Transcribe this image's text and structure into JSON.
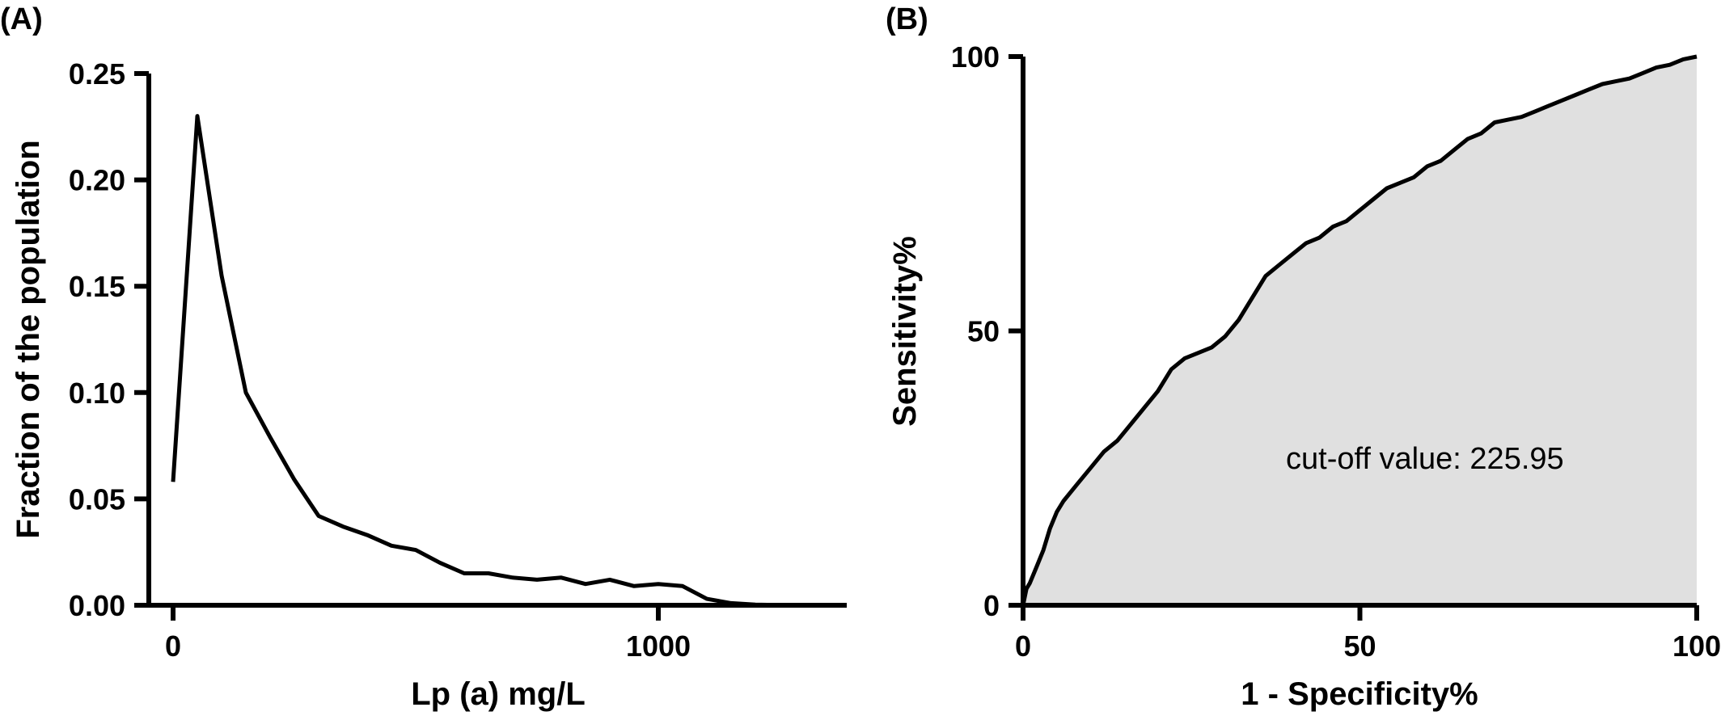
{
  "chart_data": [
    {
      "panel_label": "(A)",
      "type": "line",
      "xlabel": "Lp (a) mg/L",
      "ylabel": "Fraction of the population",
      "xlim": [
        -50,
        1400
      ],
      "ylim": [
        0,
        0.25
      ],
      "xticks": [
        "0",
        "1000"
      ],
      "xtick_values": [
        0,
        1000
      ],
      "yticks": [
        "0.00",
        "0.05",
        "0.10",
        "0.15",
        "0.20",
        "0.25"
      ],
      "ytick_values": [
        0,
        0.05,
        0.1,
        0.15,
        0.2,
        0.25
      ],
      "series": [
        {
          "x": [
            0,
            50,
            100,
            150,
            200,
            250,
            300,
            350,
            400,
            450,
            500,
            550,
            600,
            650,
            700,
            750,
            800,
            850,
            900,
            950,
            1000,
            1050,
            1100,
            1150,
            1200,
            1250,
            1300
          ],
          "values": [
            0.058,
            0.23,
            0.155,
            0.1,
            0.079,
            0.059,
            0.042,
            0.037,
            0.033,
            0.028,
            0.026,
            0.02,
            0.015,
            0.015,
            0.013,
            0.012,
            0.013,
            0.01,
            0.012,
            0.009,
            0.01,
            0.009,
            0.003,
            0.001,
            0.0003,
            0.0001,
            0
          ]
        }
      ]
    },
    {
      "panel_label": "(B)",
      "type": "area",
      "xlabel": "1 - Specificity%",
      "ylabel": "Sensitivity%",
      "xlim": [
        0,
        100
      ],
      "ylim": [
        0,
        100
      ],
      "xticks": [
        "0",
        "50",
        "100"
      ],
      "xtick_values": [
        0,
        50,
        100
      ],
      "yticks": [
        "0",
        "50",
        "100"
      ],
      "ytick_values": [
        0,
        50,
        100
      ],
      "annotation": "cut-off value: 225.95",
      "series": [
        {
          "x": [
            0,
            0.5,
            1,
            2,
            3,
            4,
            5,
            6,
            8,
            10,
            12,
            14,
            16,
            18,
            20,
            22,
            24,
            26,
            28,
            30,
            32,
            34,
            36,
            38,
            40,
            42,
            44,
            46,
            48,
            50,
            52,
            54,
            56,
            58,
            60,
            62,
            64,
            66,
            68,
            70,
            72,
            74,
            76,
            78,
            80,
            82,
            84,
            86,
            88,
            90,
            92,
            94,
            96,
            98,
            100
          ],
          "values": [
            0,
            3,
            4,
            7,
            10,
            14,
            17,
            19,
            22,
            25,
            28,
            30,
            33,
            36,
            39,
            43,
            45,
            46,
            47,
            49,
            52,
            56,
            60,
            62,
            64,
            66,
            67,
            69,
            70,
            72,
            74,
            76,
            77,
            78,
            80,
            81,
            83,
            85,
            86,
            88,
            88.5,
            89,
            90,
            91,
            92,
            93,
            94,
            95,
            95.5,
            96,
            97,
            98,
            98.5,
            99.5,
            100
          ]
        }
      ]
    }
  ]
}
